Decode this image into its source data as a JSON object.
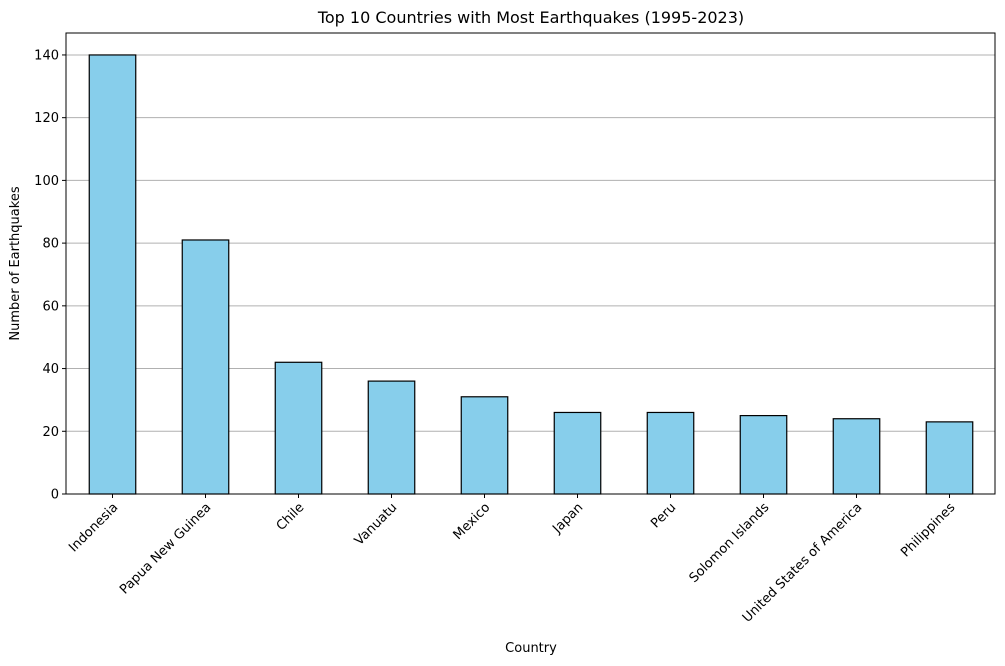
{
  "chart_data": {
    "type": "bar",
    "title": "Top 10 Countries with Most Earthquakes (1995-2023)",
    "xlabel": "Country",
    "ylabel": "Number of Earthquakes",
    "categories": [
      "Indonesia",
      "Papua New Guinea",
      "Chile",
      "Vanuatu",
      "Mexico",
      "Japan",
      "Peru",
      "Solomon Islands",
      "United States of America",
      "Philippines"
    ],
    "values": [
      140,
      81,
      42,
      36,
      31,
      26,
      26,
      25,
      24,
      23
    ],
    "ylim": [
      0,
      147
    ],
    "yticks": [
      0,
      20,
      40,
      60,
      80,
      100,
      120,
      140
    ],
    "grid": "y-axis",
    "bar_color": "#87ceeb",
    "edge_color": "#000000",
    "grid_color": "#b0b0b0"
  }
}
